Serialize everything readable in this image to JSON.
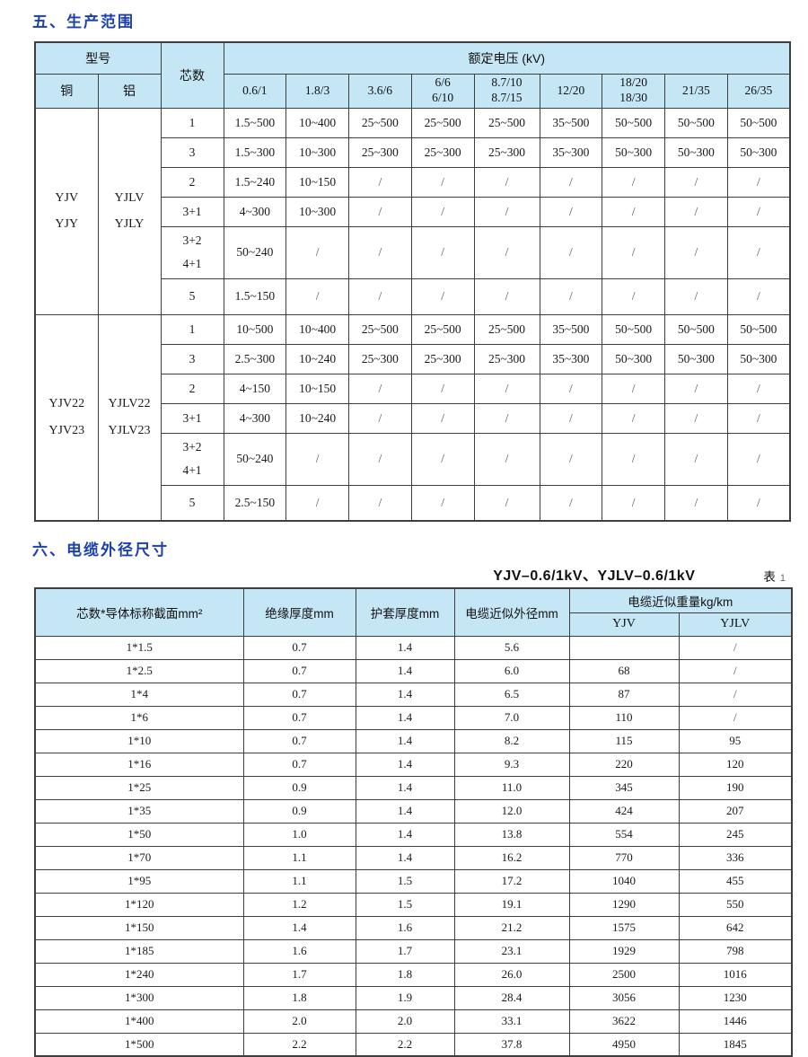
{
  "colors": {
    "title_blue": "#1c40ae",
    "header_fill": "#c5e6f5",
    "border": "#3e3e3e"
  },
  "section5": {
    "title": "五、生产范围",
    "table": {
      "header": {
        "model": "型号",
        "copper": "铜",
        "aluminum": "铝",
        "cores": "芯数",
        "voltage": "额定电压 (kV)",
        "voltages": [
          "0.6/1",
          "1.8/3",
          "3.6/6",
          "6/6\n6/10",
          "8.7/10\n8.7/15",
          "12/20",
          "18/20\n18/30",
          "21/35",
          "26/35"
        ]
      },
      "sections": [
        {
          "copper": "YJV\nYJY",
          "aluminum": "YJLV\nYJLY",
          "rows": [
            {
              "cores": "1",
              "values": [
                "1.5~500",
                "10~400",
                "25~500",
                "25~500",
                "25~500",
                "35~500",
                "50~500",
                "50~500",
                "50~500"
              ]
            },
            {
              "cores": "3",
              "values": [
                "1.5~300",
                "10~300",
                "25~300",
                "25~300",
                "25~300",
                "35~300",
                "50~300",
                "50~300",
                "50~300"
              ]
            },
            {
              "cores": "2",
              "values": [
                "1.5~240",
                "10~150",
                "/",
                "/",
                "/",
                "/",
                "/",
                "/",
                "/"
              ]
            },
            {
              "cores": "3+1",
              "values": [
                "4~300",
                "10~300",
                "/",
                "/",
                "/",
                "/",
                "/",
                "/",
                "/"
              ]
            },
            {
              "cores": "3+2\n4+1",
              "values": [
                "50~240",
                "/",
                "/",
                "/",
                "/",
                "/",
                "/",
                "/",
                "/"
              ]
            },
            {
              "cores": "5",
              "values": [
                "1.5~150",
                "/",
                "/",
                "/",
                "/",
                "/",
                "/",
                "/",
                "/"
              ]
            }
          ]
        },
        {
          "copper": "YJV22\nYJV23",
          "aluminum": "YJLV22\nYJLV23",
          "rows": [
            {
              "cores": "1",
              "values": [
                "10~500",
                "10~400",
                "25~500",
                "25~500",
                "25~500",
                "35~500",
                "50~500",
                "50~500",
                "50~500"
              ]
            },
            {
              "cores": "3",
              "values": [
                "2.5~300",
                "10~240",
                "25~300",
                "25~300",
                "25~300",
                "35~300",
                "50~300",
                "50~300",
                "50~300"
              ]
            },
            {
              "cores": "2",
              "values": [
                "4~150",
                "10~150",
                "/",
                "/",
                "/",
                "/",
                "/",
                "/",
                "/"
              ]
            },
            {
              "cores": "3+1",
              "values": [
                "4~300",
                "10~240",
                "/",
                "/",
                "/",
                "/",
                "/",
                "/",
                "/"
              ]
            },
            {
              "cores": "3+2\n4+1",
              "values": [
                "50~240",
                "/",
                "/",
                "/",
                "/",
                "/",
                "/",
                "/",
                "/"
              ]
            },
            {
              "cores": "5",
              "values": [
                "2.5~150",
                "/",
                "/",
                "/",
                "/",
                "/",
                "/",
                "/",
                "/"
              ]
            }
          ]
        }
      ]
    }
  },
  "section6": {
    "title": "六、电缆外径尺寸",
    "subtitle": "YJV–0.6/1kV、YJLV–0.6/1kV",
    "table_tag": "表",
    "table_number": "1",
    "table": {
      "header": {
        "col_section": "芯数*导体标称截面mm²",
        "col_insulation": "绝缘厚度mm",
        "col_sheath": "护套厚度mm",
        "col_diameter": "电缆近似外径mm",
        "col_weight": "电缆近似重量kg/km",
        "col_yjv": "YJV",
        "col_yjlv": "YJLV"
      },
      "rows": [
        [
          "1*1.5",
          "0.7",
          "1.4",
          "5.6",
          "",
          "/"
        ],
        [
          "1*2.5",
          "0.7",
          "1.4",
          "6.0",
          "68",
          "/"
        ],
        [
          "1*4",
          "0.7",
          "1.4",
          "6.5",
          "87",
          "/"
        ],
        [
          "1*6",
          "0.7",
          "1.4",
          "7.0",
          "110",
          "/"
        ],
        [
          "1*10",
          "0.7",
          "1.4",
          "8.2",
          "115",
          "95"
        ],
        [
          "1*16",
          "0.7",
          "1.4",
          "9.3",
          "220",
          "120"
        ],
        [
          "1*25",
          "0.9",
          "1.4",
          "11.0",
          "345",
          "190"
        ],
        [
          "1*35",
          "0.9",
          "1.4",
          "12.0",
          "424",
          "207"
        ],
        [
          "1*50",
          "1.0",
          "1.4",
          "13.8",
          "554",
          "245"
        ],
        [
          "1*70",
          "1.1",
          "1.4",
          "16.2",
          "770",
          "336"
        ],
        [
          "1*95",
          "1.1",
          "1.5",
          "17.2",
          "1040",
          "455"
        ],
        [
          "1*120",
          "1.2",
          "1.5",
          "19.1",
          "1290",
          "550"
        ],
        [
          "1*150",
          "1.4",
          "1.6",
          "21.2",
          "1575",
          "642"
        ],
        [
          "1*185",
          "1.6",
          "1.7",
          "23.1",
          "1929",
          "798"
        ],
        [
          "1*240",
          "1.7",
          "1.8",
          "26.0",
          "2500",
          "1016"
        ],
        [
          "1*300",
          "1.8",
          "1.9",
          "28.4",
          "3056",
          "1230"
        ],
        [
          "1*400",
          "2.0",
          "2.0",
          "33.1",
          "3622",
          "1446"
        ],
        [
          "1*500",
          "2.2",
          "2.2",
          "37.8",
          "4950",
          "1845"
        ]
      ]
    }
  }
}
